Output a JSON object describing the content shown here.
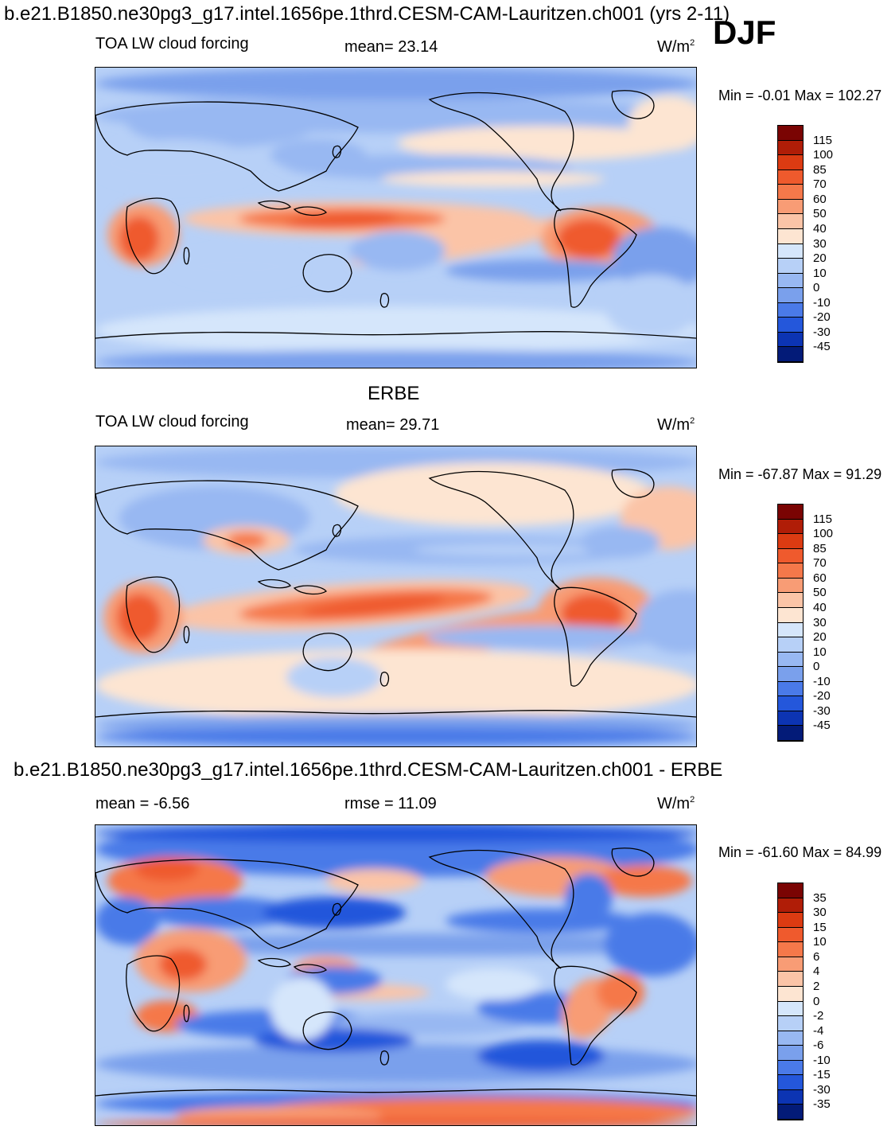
{
  "header": {
    "title": "b.e21.B1850.ne30pg3_g17.intel.1656pe.1thrd.CESM-CAM-Lauritzen.ch001 (yrs 2-11)",
    "season": "DJF"
  },
  "panel1": {
    "variable": "TOA LW cloud forcing",
    "mean_text": "mean=  23.14",
    "units": "W/m",
    "units_sup": "2",
    "minmax": "Min =  -0.01 Max = 102.27"
  },
  "panel2": {
    "title": "ERBE",
    "variable": "TOA LW cloud forcing",
    "mean_text": "mean=  29.71",
    "units": "W/m",
    "units_sup": "2",
    "minmax": "Min = -67.87 Max =  91.29"
  },
  "panel3": {
    "title": "b.e21.B1850.ne30pg3_g17.intel.1656pe.1thrd.CESM-CAM-Lauritzen.ch001 - ERBE",
    "mean_text": "mean =  -6.56",
    "rmse_text": "rmse =  11.09",
    "units": "W/m",
    "units_sup": "2",
    "minmax": "Min = -61.60 Max =  84.99"
  },
  "chart_data": [
    {
      "type": "heatmap",
      "title": "TOA LW cloud forcing",
      "projection": "global map, Pacific-centered",
      "mean": 23.14,
      "min": -0.01,
      "max": 102.27,
      "levels": [
        "115",
        "100",
        "85",
        "70",
        "60",
        "50",
        "40",
        "30",
        "20",
        "10",
        "0",
        "-10",
        "-20",
        "-30",
        "-45"
      ],
      "colors": [
        "#7a0403",
        "#b01d07",
        "#dc3b12",
        "#ef5a2d",
        "#f5784a",
        "#f89c75",
        "#fbc4a7",
        "#fde5d2",
        "#d5e6fb",
        "#b7d0f7",
        "#98b8f2",
        "#7aa0ec",
        "#4a7ae8",
        "#2457db",
        "#0c34b3",
        "#031b78"
      ]
    },
    {
      "type": "heatmap",
      "title": "ERBE",
      "projection": "global map, Pacific-centered",
      "mean": 29.71,
      "min": -67.87,
      "max": 91.29,
      "levels": [
        "115",
        "100",
        "85",
        "70",
        "60",
        "50",
        "40",
        "30",
        "20",
        "10",
        "0",
        "-10",
        "-20",
        "-30",
        "-45"
      ],
      "colors": [
        "#7a0403",
        "#b01d07",
        "#dc3b12",
        "#ef5a2d",
        "#f5784a",
        "#f89c75",
        "#fbc4a7",
        "#fde5d2",
        "#d5e6fb",
        "#b7d0f7",
        "#98b8f2",
        "#7aa0ec",
        "#4a7ae8",
        "#2457db",
        "#0c34b3",
        "#031b78"
      ]
    },
    {
      "type": "heatmap",
      "title": "b.e21.B1850.ne30pg3_g17.intel.1656pe.1thrd.CESM-CAM-Lauritzen.ch001 - ERBE",
      "projection": "global map, Pacific-centered",
      "mean": -6.56,
      "rmse": 11.09,
      "min": -61.6,
      "max": 84.99,
      "levels": [
        "35",
        "30",
        "15",
        "10",
        "6",
        "4",
        "2",
        "0",
        "-2",
        "-4",
        "-6",
        "-10",
        "-15",
        "-30",
        "-35"
      ],
      "colors": [
        "#7a0403",
        "#b01d07",
        "#dc3b12",
        "#ef5a2d",
        "#f5784a",
        "#f89c75",
        "#fbc4a7",
        "#fde5d2",
        "#d5e6fb",
        "#b7d0f7",
        "#98b8f2",
        "#7aa0ec",
        "#4a7ae8",
        "#2457db",
        "#0c34b3",
        "#031b78"
      ]
    }
  ]
}
